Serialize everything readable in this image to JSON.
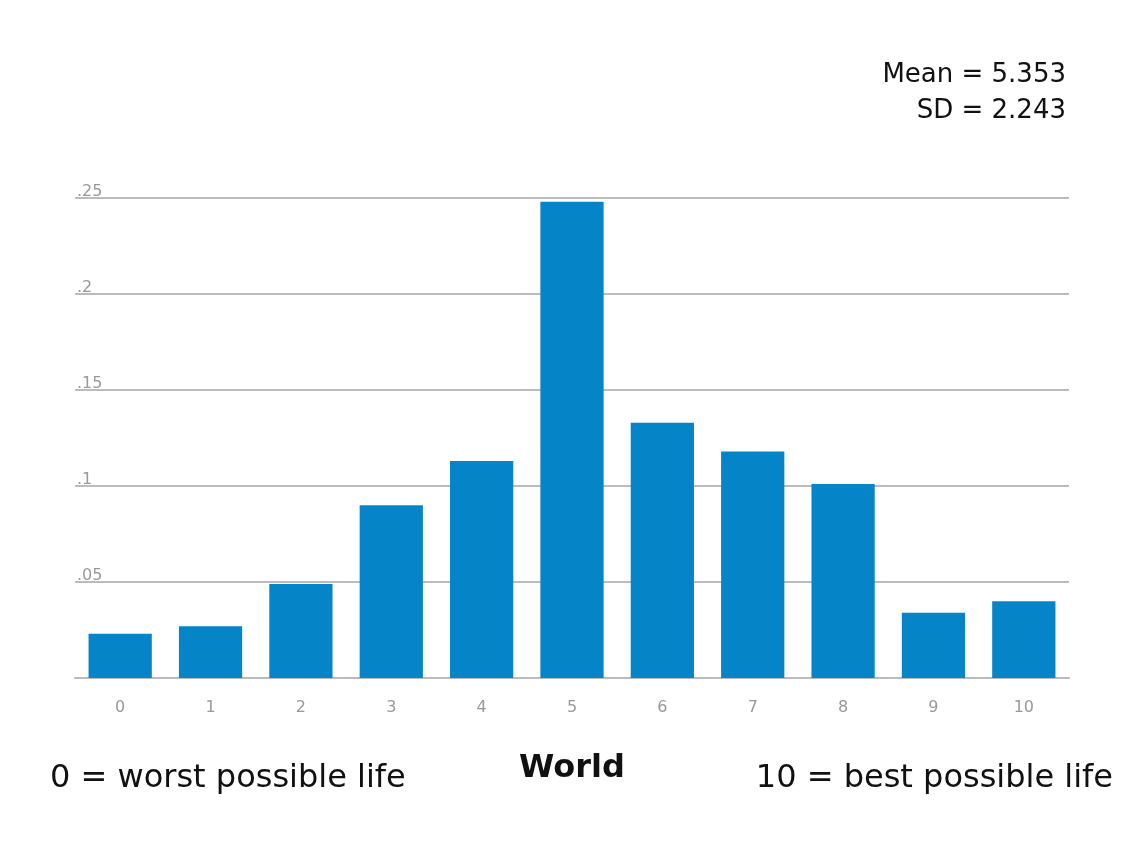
{
  "chart_data": {
    "type": "bar",
    "xlabel": "World",
    "categories": [
      "0",
      "1",
      "2",
      "3",
      "4",
      "5",
      "6",
      "7",
      "8",
      "9",
      "10"
    ],
    "values": [
      0.023,
      0.027,
      0.049,
      0.09,
      0.113,
      0.248,
      0.133,
      0.118,
      0.101,
      0.034,
      0.04
    ],
    "color": "#0585c8",
    "ylim": [
      0,
      0.25
    ],
    "yticks": [
      {
        "value": 0,
        "label": null
      },
      {
        "value": 0.05,
        "label": ".05"
      },
      {
        "value": 0.1,
        "label": ".1"
      },
      {
        "value": 0.15,
        "label": ".15"
      },
      {
        "value": 0.2,
        "label": ".2"
      },
      {
        "value": 0.25,
        "label": ".25"
      }
    ],
    "grid": "y",
    "annotations": [
      "Mean = 5.353",
      "SD = 2.243",
      "0 = worst possible life",
      "10 = best possible life"
    ]
  }
}
